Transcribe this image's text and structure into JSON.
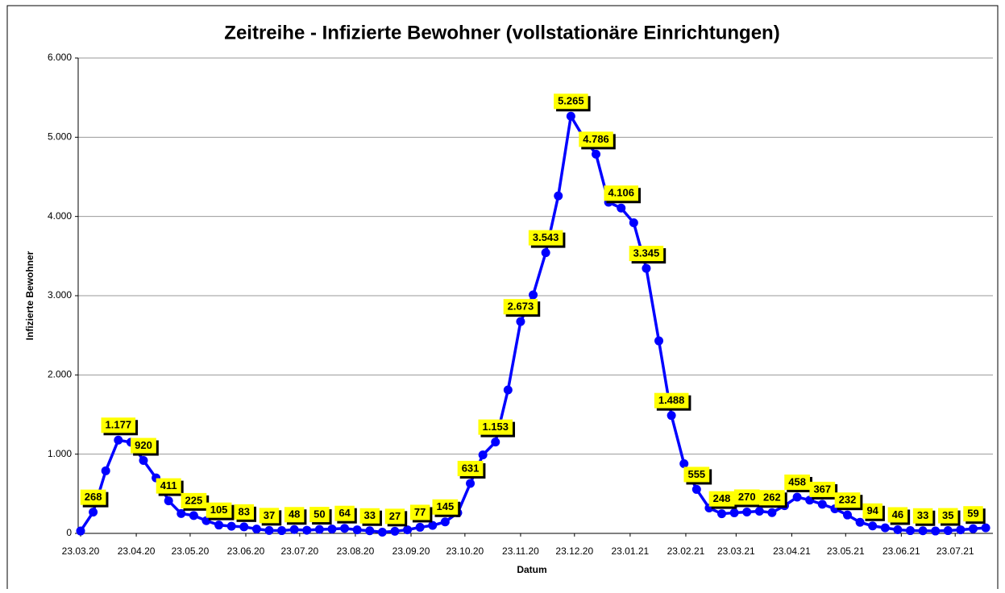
{
  "chart_data": {
    "type": "line",
    "title": "Zeitreihe - Infizierte Bewohner (vollstationäre Einrichtungen)",
    "x_label": "Datum",
    "y_label": "Infizierte Bewohner",
    "x": [
      0,
      7,
      14,
      21,
      28,
      35,
      42,
      49,
      56,
      63,
      70,
      77,
      84,
      91,
      98,
      105,
      112,
      119,
      126,
      133,
      140,
      147,
      154,
      161,
      168,
      175,
      182,
      189,
      196,
      203,
      210,
      217,
      224,
      231,
      238,
      245,
      252,
      259,
      266,
      273,
      280,
      287,
      294,
      301,
      308,
      315,
      322,
      329,
      336,
      343,
      350,
      357,
      364,
      371,
      378,
      385,
      392,
      399,
      406,
      413,
      420,
      427,
      434,
      441,
      448,
      455,
      462,
      469,
      476,
      483,
      490,
      497,
      504
    ],
    "series": [
      {
        "name": "Infizierte Bewohner",
        "color": "#0000ff",
        "values": [
          30,
          268,
          790,
          1177,
          1150,
          920,
          700,
          411,
          250,
          225,
          160,
          105,
          90,
          83,
          55,
          37,
          35,
          48,
          40,
          50,
          55,
          64,
          45,
          33,
          15,
          27,
          45,
          77,
          100,
          145,
          260,
          631,
          990,
          1153,
          1810,
          2673,
          3010,
          3543,
          4260,
          5265,
          5000,
          4786,
          4180,
          4106,
          3920,
          3345,
          2430,
          1488,
          880,
          555,
          320,
          248,
          260,
          270,
          280,
          262,
          350,
          458,
          420,
          367,
          310,
          232,
          140,
          94,
          70,
          46,
          35,
          33,
          30,
          35,
          45,
          59,
          70
        ],
        "value_labels": [
          null,
          "268",
          null,
          "1.177",
          null,
          "920",
          null,
          "411",
          null,
          "225",
          null,
          "105",
          null,
          "83",
          null,
          "37",
          null,
          "48",
          null,
          "50",
          null,
          "64",
          null,
          "33",
          null,
          "27",
          null,
          "77",
          null,
          "145",
          null,
          "631",
          null,
          "1.153",
          null,
          "2.673",
          null,
          "3.543",
          null,
          "5.265",
          null,
          "4.786",
          null,
          "4.106",
          null,
          "3.345",
          null,
          "1.488",
          null,
          "555",
          null,
          "248",
          null,
          "270",
          null,
          "262",
          null,
          "458",
          null,
          "367",
          null,
          "232",
          null,
          "94",
          null,
          "46",
          null,
          "33",
          null,
          "35",
          null,
          "59",
          null
        ]
      }
    ],
    "xlim": [
      0,
      508
    ],
    "xticks": [
      {
        "value": 0,
        "label": "23.03.20"
      },
      {
        "value": 31,
        "label": "23.04.20"
      },
      {
        "value": 61,
        "label": "23.05.20"
      },
      {
        "value": 92,
        "label": "23.06.20"
      },
      {
        "value": 122,
        "label": "23.07.20"
      },
      {
        "value": 153,
        "label": "23.08.20"
      },
      {
        "value": 184,
        "label": "23.09.20"
      },
      {
        "value": 214,
        "label": "23.10.20"
      },
      {
        "value": 245,
        "label": "23.11.20"
      },
      {
        "value": 275,
        "label": "23.12.20"
      },
      {
        "value": 306,
        "label": "23.01.21"
      },
      {
        "value": 337,
        "label": "23.02.21"
      },
      {
        "value": 365,
        "label": "23.03.21"
      },
      {
        "value": 396,
        "label": "23.04.21"
      },
      {
        "value": 426,
        "label": "23.05.21"
      },
      {
        "value": 457,
        "label": "23.06.21"
      },
      {
        "value": 487,
        "label": "23.07.21"
      }
    ],
    "ylim": [
      0,
      6000
    ],
    "yticks": [
      0,
      {
        "value": 1000,
        "label": "1.000"
      },
      {
        "value": 2000,
        "label": "2.000"
      },
      {
        "value": 3000,
        "label": "3.000"
      },
      {
        "value": 4000,
        "label": "4.000"
      },
      {
        "value": 5000,
        "label": "5.000"
      },
      {
        "value": 6000,
        "label": "6.000"
      }
    ],
    "grid": true,
    "label_color": "#ffff00"
  }
}
